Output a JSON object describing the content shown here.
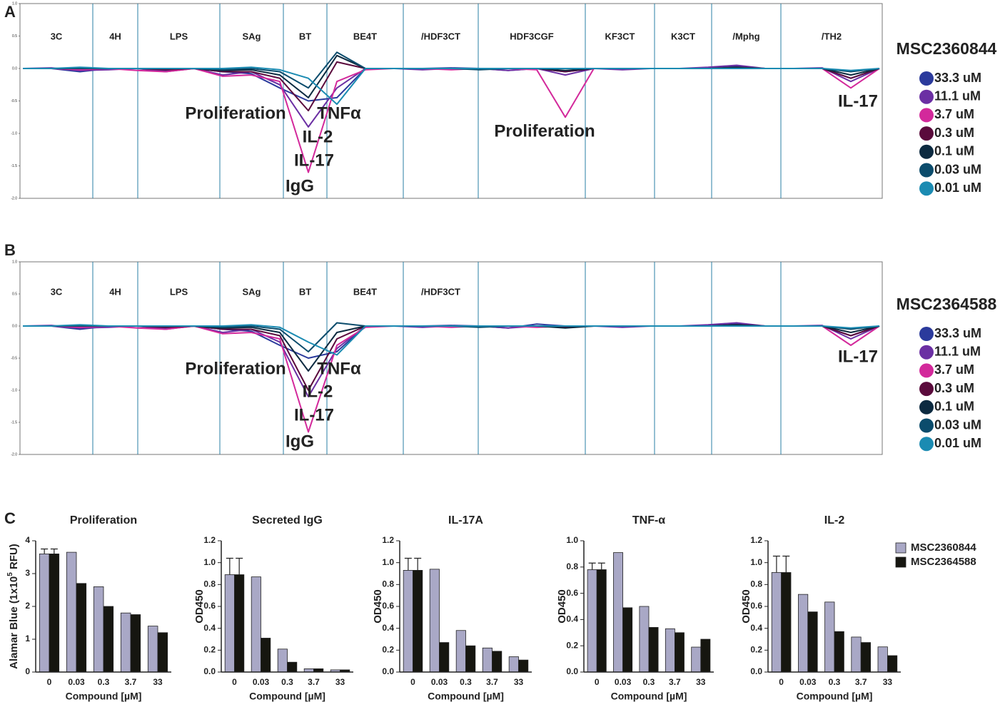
{
  "panel_labels": [
    "A",
    "B",
    "C"
  ],
  "chart_data": [
    {
      "type": "line",
      "legend_title": "MSC2360844",
      "sections": [
        "3C",
        "4H",
        "LPS",
        "SAg",
        "BT",
        "BE4T",
        "/HDF3CT",
        "HDF3CGF",
        "KF3CT",
        "K3CT",
        "/Mphg",
        "/TH2"
      ],
      "annotations": [
        "Proliferation",
        "TNFα",
        "IL-2",
        "IL-17",
        "IgG",
        "Proliferation",
        "IL-17"
      ],
      "ylim": [
        -2,
        1
      ],
      "yticks": [
        {
          "value": 1,
          "label": "1.0"
        },
        {
          "value": 0.5,
          "label": "0.5"
        },
        {
          "value": 0,
          "label": "0.0"
        },
        {
          "value": -0.5,
          "label": "-0.5"
        },
        {
          "value": -1,
          "label": "-1.0"
        },
        {
          "value": -1.5,
          "label": "-1.5"
        },
        {
          "value": -2,
          "label": "-2.0"
        }
      ],
      "series": [
        {
          "name": "33.3 uM",
          "color": "#2b3a9c",
          "values": [
            0,
            0,
            -0.05,
            0,
            0,
            -0.03,
            0,
            -0.05,
            -0.08,
            -0.3,
            -0.5,
            -0.45,
            0,
            0,
            0,
            0.01,
            0,
            -0.03,
            0,
            -0.05,
            0,
            0,
            0,
            0,
            0,
            0.03,
            0,
            0,
            0,
            -0.15,
            0
          ]
        },
        {
          "name": "11.1 uM",
          "color": "#6b2fa3",
          "values": [
            0,
            0.01,
            -0.03,
            -0.02,
            0,
            -0.05,
            0,
            -0.1,
            -0.05,
            -0.25,
            -0.9,
            -0.3,
            0,
            0,
            -0.02,
            0,
            0,
            -0.03,
            0,
            -0.1,
            0,
            -0.02,
            0,
            0,
            0.02,
            0.05,
            0,
            0,
            0.01,
            -0.2,
            0
          ]
        },
        {
          "name": "3.7 uM",
          "color": "#d3299b",
          "values": [
            0,
            0,
            -0.02,
            0,
            -0.03,
            -0.05,
            0,
            -0.12,
            -0.1,
            -0.2,
            -1.6,
            -0.2,
            -0.02,
            0,
            0,
            -0.02,
            0,
            0,
            -0.02,
            -0.75,
            0,
            0,
            0,
            0,
            0,
            0.02,
            0,
            0,
            0,
            -0.3,
            0
          ]
        },
        {
          "name": "0.3 uM",
          "color": "#5a0a3c",
          "values": [
            0,
            0,
            0,
            0,
            0,
            -0.02,
            0,
            -0.05,
            -0.05,
            -0.15,
            -0.65,
            0.1,
            0,
            0,
            0,
            0,
            0,
            0,
            0,
            -0.05,
            0,
            0,
            0,
            0,
            0,
            0,
            0,
            0,
            0,
            -0.15,
            0
          ]
        },
        {
          "name": "0.1 uM",
          "color": "#0c2a40",
          "values": [
            0,
            0,
            0,
            0,
            0,
            0,
            0,
            -0.03,
            -0.02,
            -0.1,
            -0.45,
            0.2,
            0,
            0,
            0,
            0,
            0,
            0,
            0,
            -0.03,
            0,
            0,
            0,
            0,
            0,
            0.02,
            0,
            0,
            0,
            -0.1,
            0
          ]
        },
        {
          "name": "0.03 uM",
          "color": "#0b4c6c",
          "values": [
            0,
            0,
            0,
            0,
            0,
            0,
            0,
            -0.02,
            0,
            -0.05,
            -0.3,
            0.25,
            0,
            0,
            0,
            0,
            -0.02,
            0,
            0,
            0,
            0,
            0,
            0,
            0,
            0,
            0,
            0,
            0,
            0,
            -0.05,
            0
          ]
        },
        {
          "name": "0.01 uM",
          "color": "#1b8bb2",
          "values": [
            0,
            0,
            0.02,
            0,
            0,
            0,
            0,
            0,
            0.02,
            -0.02,
            -0.15,
            -0.55,
            0,
            0,
            0,
            0,
            0,
            0,
            0,
            0,
            0,
            0,
            0,
            0,
            0,
            0,
            0,
            0,
            0,
            -0.03,
            0
          ]
        }
      ]
    },
    {
      "type": "line",
      "legend_title": "MSC2364588",
      "sections": [
        "3C",
        "4H",
        "LPS",
        "SAg",
        "BT",
        "BE4T",
        "/HDF3CT"
      ],
      "annotations": [
        "Proliferation",
        "TNFα",
        "IL-2",
        "IL-17",
        "IgG",
        "IL-17"
      ],
      "ylim": [
        -2,
        1
      ],
      "yticks": [
        {
          "value": 1,
          "label": "1.0"
        },
        {
          "value": 0.5,
          "label": "0.5"
        },
        {
          "value": 0,
          "label": "0.0"
        },
        {
          "value": -0.5,
          "label": "-0.5"
        },
        {
          "value": -1,
          "label": "-1.0"
        },
        {
          "value": -1.5,
          "label": "-1.5"
        },
        {
          "value": -2,
          "label": "-2.0"
        }
      ],
      "series": [
        {
          "name": "33.3 uM",
          "color": "#2b3a9c",
          "values": [
            0,
            0,
            -0.05,
            0,
            0,
            -0.03,
            0,
            -0.05,
            -0.08,
            -0.3,
            -0.5,
            -0.4,
            0,
            0,
            0,
            0.01,
            0,
            -0.03,
            0.03,
            0,
            0,
            0,
            0,
            0,
            0,
            0.03,
            0,
            0,
            0,
            -0.15,
            0
          ]
        },
        {
          "name": "11.1 uM",
          "color": "#6b2fa3",
          "values": [
            0,
            0.01,
            -0.03,
            -0.02,
            0,
            -0.05,
            0,
            -0.1,
            -0.05,
            -0.25,
            -1.1,
            -0.35,
            0,
            0,
            -0.02,
            0,
            0,
            -0.03,
            0,
            -0.02,
            0,
            -0.02,
            0,
            0,
            0.02,
            0.05,
            0,
            0,
            0.01,
            -0.2,
            0
          ]
        },
        {
          "name": "3.7 uM",
          "color": "#d3299b",
          "values": [
            0,
            0,
            -0.02,
            0,
            -0.03,
            -0.05,
            0,
            -0.12,
            -0.1,
            -0.2,
            -1.65,
            -0.3,
            -0.02,
            0,
            0,
            -0.02,
            0,
            0,
            -0.02,
            0,
            0,
            0,
            0,
            0,
            0,
            0.02,
            0,
            0,
            0,
            -0.3,
            0
          ]
        },
        {
          "name": "0.3 uM",
          "color": "#5a0a3c",
          "values": [
            0,
            0,
            0,
            0,
            0,
            -0.02,
            0,
            -0.05,
            -0.05,
            -0.15,
            -1.0,
            -0.2,
            0,
            0,
            0,
            0,
            0,
            0,
            0,
            -0.02,
            0,
            0,
            0,
            0,
            0,
            0,
            0,
            0,
            0,
            -0.15,
            0
          ]
        },
        {
          "name": "0.1 uM",
          "color": "#0c2a40",
          "values": [
            0,
            0,
            0,
            0,
            0,
            0,
            0,
            -0.03,
            -0.02,
            -0.1,
            -0.7,
            -0.1,
            0,
            0,
            0,
            0,
            0,
            0,
            0,
            -0.03,
            0,
            0,
            0,
            0,
            0,
            0.02,
            0,
            0,
            0,
            -0.1,
            0
          ]
        },
        {
          "name": "0.03 uM",
          "color": "#0b4c6c",
          "values": [
            0,
            0,
            0,
            0,
            0,
            0,
            0,
            -0.02,
            0,
            -0.05,
            -0.4,
            0.05,
            0,
            0,
            0,
            0,
            -0.02,
            0,
            0,
            0,
            0,
            0,
            0,
            0,
            0,
            0,
            0,
            0,
            0,
            -0.05,
            0
          ]
        },
        {
          "name": "0.01 uM",
          "color": "#1b8bb2",
          "values": [
            0,
            0,
            0.02,
            0,
            0,
            0,
            0,
            0,
            0.02,
            -0.02,
            -0.25,
            -0.45,
            0,
            0,
            0,
            0,
            0,
            0,
            0,
            0,
            0,
            0,
            0,
            0,
            0,
            0,
            0,
            0,
            0,
            -0.03,
            0
          ]
        }
      ]
    },
    {
      "type": "bar",
      "title": "Proliferation",
      "ylabel": "Alamar Blue (1x10",
      "ylabel_sup": "5",
      "ylabel_end": " RFU)",
      "xlabel": "Compound [µM]",
      "categories": [
        "0",
        "0.03",
        "0.3",
        "3.7",
        "33"
      ],
      "ylim": [
        0,
        4
      ],
      "yticks": [
        0,
        1,
        2,
        3,
        4
      ],
      "series": [
        {
          "name": "MSC2360844",
          "color": "#a9a8c6",
          "values": [
            3.6,
            3.65,
            2.6,
            1.8,
            1.4
          ],
          "errors": [
            0.15,
            null,
            null,
            null,
            null
          ]
        },
        {
          "name": "MSC2364588",
          "color": "#161610",
          "values": [
            3.6,
            2.7,
            2.0,
            1.75,
            1.2
          ],
          "errors": [
            0.15,
            null,
            null,
            null,
            null
          ]
        }
      ]
    },
    {
      "type": "bar",
      "title": "Secreted IgG",
      "ylabel": "OD450",
      "xlabel": "Compound [µM]",
      "categories": [
        "0",
        "0.03",
        "0.3",
        "3.7",
        "33"
      ],
      "ylim": [
        0,
        1.2
      ],
      "yticks": [
        {
          "value": 0,
          "label": "0.0"
        },
        {
          "value": 0.2,
          "label": "0.2"
        },
        {
          "value": 0.4,
          "label": "0.4"
        },
        {
          "value": 0.6,
          "label": "0.6"
        },
        {
          "value": 0.8,
          "label": "0.8"
        },
        {
          "value": 1,
          "label": "1.0"
        },
        {
          "value": 1.2,
          "label": "1.2"
        }
      ],
      "series": [
        {
          "name": "MSC2360844",
          "color": "#a9a8c6",
          "values": [
            0.89,
            0.87,
            0.21,
            0.03,
            0.02
          ],
          "errors": [
            0.15,
            null,
            null,
            null,
            null
          ]
        },
        {
          "name": "MSC2364588",
          "color": "#161610",
          "values": [
            0.89,
            0.31,
            0.09,
            0.03,
            0.02
          ],
          "errors": [
            0.15,
            null,
            null,
            null,
            null
          ]
        }
      ]
    },
    {
      "type": "bar",
      "title": "IL-17A",
      "ylabel": "OD450",
      "xlabel": "Compound [µM]",
      "categories": [
        "0",
        "0.03",
        "0.3",
        "3.7",
        "33"
      ],
      "ylim": [
        0,
        1.2
      ],
      "yticks": [
        {
          "value": 0,
          "label": "0.0"
        },
        {
          "value": 0.2,
          "label": "0.2"
        },
        {
          "value": 0.4,
          "label": "0.4"
        },
        {
          "value": 0.6,
          "label": "0.6"
        },
        {
          "value": 0.8,
          "label": "0.8"
        },
        {
          "value": 1,
          "label": "1.0"
        },
        {
          "value": 1.2,
          "label": "1.2"
        }
      ],
      "series": [
        {
          "name": "MSC2360844",
          "color": "#a9a8c6",
          "values": [
            0.93,
            0.94,
            0.38,
            0.22,
            0.14
          ],
          "errors": [
            0.11,
            null,
            null,
            null,
            null
          ]
        },
        {
          "name": "MSC2364588",
          "color": "#161610",
          "values": [
            0.93,
            0.27,
            0.24,
            0.19,
            0.11
          ],
          "errors": [
            0.11,
            null,
            null,
            null,
            null
          ]
        }
      ]
    },
    {
      "type": "bar",
      "title": "TNF-α",
      "ylabel": "OD450",
      "xlabel": "Compound [µM]",
      "categories": [
        "0",
        "0.03",
        "0.3",
        "3.7",
        "33"
      ],
      "ylim": [
        0,
        1
      ],
      "yticks": [
        {
          "value": 0,
          "label": "0.0"
        },
        {
          "value": 0.2,
          "label": "0.2"
        },
        {
          "value": 0.4,
          "label": "0.4"
        },
        {
          "value": 0.6,
          "label": "0.6"
        },
        {
          "value": 0.8,
          "label": "0.8"
        },
        {
          "value": 1,
          "label": "1.0"
        }
      ],
      "series": [
        {
          "name": "MSC2360844",
          "color": "#a9a8c6",
          "values": [
            0.78,
            0.91,
            0.5,
            0.33,
            0.19
          ],
          "errors": [
            0.05,
            null,
            null,
            null,
            null
          ]
        },
        {
          "name": "MSC2364588",
          "color": "#161610",
          "values": [
            0.78,
            0.49,
            0.34,
            0.3,
            0.25
          ],
          "errors": [
            0.05,
            null,
            null,
            null,
            null
          ]
        }
      ]
    },
    {
      "type": "bar",
      "title": "IL-2",
      "ylabel": "OD450",
      "xlabel": "Compound [µM]",
      "categories": [
        "0",
        "0.03",
        "0.3",
        "3.7",
        "33"
      ],
      "ylim": [
        0,
        1.2
      ],
      "yticks": [
        {
          "value": 0,
          "label": "0.0"
        },
        {
          "value": 0.2,
          "label": "0.2"
        },
        {
          "value": 0.4,
          "label": "0.4"
        },
        {
          "value": 0.6,
          "label": "0.6"
        },
        {
          "value": 0.8,
          "label": "0.8"
        },
        {
          "value": 1,
          "label": "1.0"
        },
        {
          "value": 1.2,
          "label": "1.2"
        }
      ],
      "series": [
        {
          "name": "MSC2360844",
          "color": "#a9a8c6",
          "values": [
            0.91,
            0.71,
            0.64,
            0.32,
            0.23
          ],
          "errors": [
            0.15,
            null,
            null,
            null,
            null
          ]
        },
        {
          "name": "MSC2364588",
          "color": "#161610",
          "values": [
            0.91,
            0.55,
            0.37,
            0.27,
            0.15
          ],
          "errors": [
            0.15,
            null,
            null,
            null,
            null
          ]
        }
      ]
    }
  ]
}
